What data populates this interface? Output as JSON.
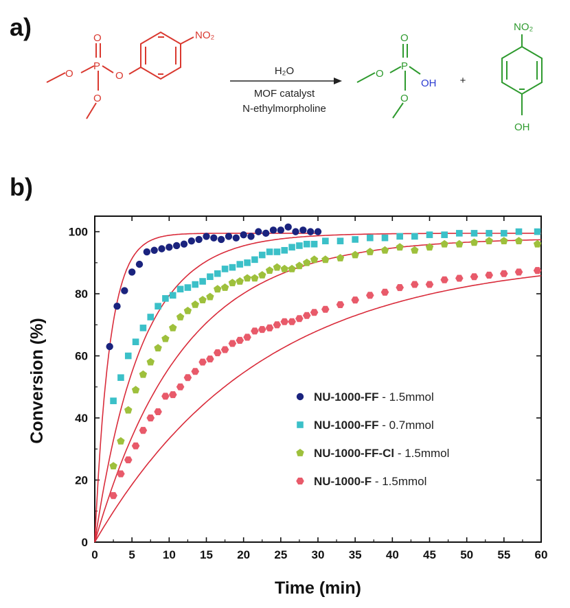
{
  "panel_a": {
    "label": "a)",
    "reagent_water": "H₂O",
    "catalyst": "MOF catalyst",
    "base": "N-ethylmorpholine",
    "plus": "+",
    "reactant_nitro": "NO₂",
    "product_nitro": "NO₂",
    "oh_phosphate": "OH",
    "oh_phenol": "OH",
    "colors": {
      "reactant": "#d9382f",
      "product": "#2e9a2e",
      "reagent": "#2b3bd1"
    }
  },
  "panel_b": {
    "label": "b)"
  },
  "chart_data": {
    "type": "scatter",
    "xlabel": "Time (min)",
    "ylabel": "Conversion (%)",
    "xlim": [
      0,
      60
    ],
    "ylim": [
      0,
      105
    ],
    "xticks": [
      0,
      5,
      10,
      15,
      20,
      25,
      30,
      35,
      40,
      45,
      50,
      55,
      60
    ],
    "yticks": [
      0,
      20,
      40,
      60,
      80,
      100
    ],
    "grid": false,
    "legend_position": "center-right",
    "fit_color": "#d92b3a",
    "series": [
      {
        "name": "NU-1000-FF",
        "condition": " - 1.5mmol",
        "color": "#1a237e",
        "marker": "circle",
        "x": [
          2,
          3,
          4,
          5,
          6,
          7,
          8,
          9,
          10,
          11,
          12,
          13,
          14,
          15,
          16,
          17,
          18,
          19,
          20,
          21,
          22,
          23,
          24,
          25,
          26,
          27,
          28,
          29,
          30
        ],
        "y": [
          63,
          76,
          81,
          87,
          89.5,
          93.5,
          94,
          94.5,
          95,
          95.5,
          96,
          97,
          97.5,
          98.5,
          98,
          97.5,
          98.5,
          98,
          99,
          98.5,
          100,
          99.5,
          100.5,
          100.5,
          101.5,
          100,
          100.5,
          100,
          100
        ],
        "fit_rate": 0.5,
        "fit_max": 99.5
      },
      {
        "name": "NU-1000-FF",
        "condition": " - 0.7mmol",
        "color": "#3bc0c8",
        "marker": "square",
        "x": [
          2.5,
          3.5,
          4.5,
          5.5,
          6.5,
          7.5,
          8.5,
          9.5,
          10.5,
          11.5,
          12.5,
          13.5,
          14.5,
          15.5,
          16.5,
          17.5,
          18.5,
          19.5,
          20.5,
          21.5,
          22.5,
          23.5,
          24.5,
          25.5,
          26.5,
          27.5,
          28.5,
          29.5,
          31,
          33,
          35,
          37,
          39,
          41,
          43,
          45,
          47,
          49,
          51,
          53,
          55,
          57,
          59.5
        ],
        "y": [
          45.5,
          53,
          60,
          64.5,
          69,
          72.5,
          76,
          78.5,
          79.5,
          81.5,
          82,
          83,
          84,
          85.5,
          86.5,
          88,
          88.5,
          89.5,
          90,
          91,
          92.5,
          93.5,
          93.5,
          94,
          95,
          95.5,
          96,
          96,
          97,
          97,
          97.5,
          98,
          98,
          98.5,
          98.5,
          99,
          99,
          99.5,
          99.5,
          99.5,
          99.5,
          100,
          100
        ],
        "fit_rate": 0.16,
        "fit_max": 99.5
      },
      {
        "name": "NU-1000-FF-Cl",
        "condition": " - 1.5mmol",
        "color": "#9ec03c",
        "marker": "pentagon",
        "x": [
          2.5,
          3.5,
          4.5,
          5.5,
          6.5,
          7.5,
          8.5,
          9.5,
          10.5,
          11.5,
          12.5,
          13.5,
          14.5,
          15.5,
          16.5,
          17.5,
          18.5,
          19.5,
          20.5,
          21.5,
          22.5,
          23.5,
          24.5,
          25.5,
          26.5,
          27.5,
          28.5,
          29.5,
          31,
          33,
          35,
          37,
          39,
          41,
          43,
          45,
          47,
          49,
          51,
          53,
          55,
          57,
          59.5
        ],
        "y": [
          24.5,
          32.5,
          42.5,
          49,
          54,
          58,
          62.5,
          65.5,
          69,
          72.5,
          74.5,
          76.5,
          78,
          79,
          81.5,
          82,
          83.5,
          84,
          85,
          85,
          86,
          87.5,
          88.5,
          88,
          88,
          89,
          90,
          91,
          91,
          91.5,
          92.5,
          93.5,
          94,
          95,
          94,
          95,
          96,
          96,
          96.5,
          97,
          97,
          97,
          96
        ],
        "fit_rate": 0.085,
        "fit_max": 98
      },
      {
        "name": "NU-1000-F",
        "condition": " - 1.5mmol",
        "color": "#e85a6a",
        "marker": "hexagon",
        "x": [
          2.5,
          3.5,
          4.5,
          5.5,
          6.5,
          7.5,
          8.5,
          9.5,
          10.5,
          11.5,
          12.5,
          13.5,
          14.5,
          15.5,
          16.5,
          17.5,
          18.5,
          19.5,
          20.5,
          21.5,
          22.5,
          23.5,
          24.5,
          25.5,
          26.5,
          27.5,
          28.5,
          29.5,
          31,
          33,
          35,
          37,
          39,
          41,
          43,
          45,
          47,
          49,
          51,
          53,
          55,
          57,
          59.5
        ],
        "y": [
          15,
          22,
          26.5,
          31,
          36,
          40,
          42,
          47,
          47.5,
          50,
          53,
          55,
          58,
          59,
          61,
          62,
          64,
          65,
          66,
          68,
          68.5,
          69,
          70,
          71,
          71,
          72,
          73,
          74,
          75,
          76.5,
          78,
          79.5,
          80.5,
          82,
          83,
          83,
          84.5,
          85,
          85.5,
          86,
          86.5,
          87,
          87.5
        ],
        "fit_rate": 0.045,
        "fit_max": 92
      }
    ]
  }
}
